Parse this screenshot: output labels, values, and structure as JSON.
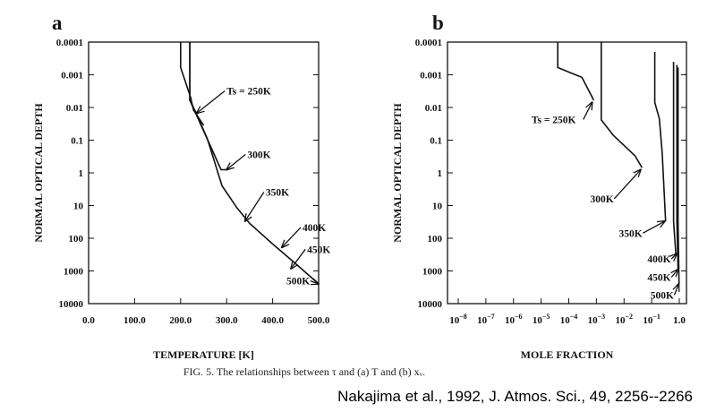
{
  "caption": "FIG. 5. The relationships between τ and (a) T and (b) xᵥ.",
  "citation": "Nakajima et al., 1992, J. Atmos. Sci., 49, 2256--2266",
  "chart_data": [
    {
      "panel": "a",
      "type": "line",
      "xlabel": "TEMPERATURE [K]",
      "ylabel": "NORMAL OPTICAL DEPTH",
      "xlim": [
        0,
        500
      ],
      "ylim": [
        0.0001,
        10000
      ],
      "yscale": "log",
      "yreversed": true,
      "xticks": [
        "0.0",
        "100.0",
        "200.0",
        "300.0",
        "400.0",
        "500.0"
      ],
      "yticks": [
        "0.0001",
        "0.001",
        "0.01",
        "0.1",
        "1",
        "10",
        "100",
        "1000",
        "10000"
      ],
      "series": [
        {
          "name": "Ts = 250K",
          "points": [
            [
              200,
              0.0001
            ],
            [
              200,
              0.0006
            ],
            [
              222,
              0.005
            ],
            [
              228,
              0.012
            ],
            [
              250,
              0.035
            ]
          ]
        },
        {
          "name": "300K",
          "points": [
            [
              220,
              0.0001
            ],
            [
              220,
              0.006
            ],
            [
              288,
              0.8
            ],
            [
              300,
              0.8
            ]
          ]
        },
        {
          "name": "350K",
          "points": [
            [
              220,
              0.0001
            ],
            [
              220,
              0.006
            ],
            [
              232,
              0.013
            ],
            [
              258,
              0.09
            ],
            [
              290,
              2.5
            ],
            [
              323,
              12
            ],
            [
              350,
              35
            ]
          ]
        },
        {
          "name": "400K",
          "points": [
            [
              350,
              35
            ],
            [
              400,
              150
            ]
          ]
        },
        {
          "name": "450K",
          "points": [
            [
              400,
              150
            ],
            [
              450,
              600
            ]
          ]
        },
        {
          "name": "500K",
          "points": [
            [
              450,
              600
            ],
            [
              500,
              2500
            ]
          ]
        }
      ],
      "annotations": [
        {
          "text": "Ts = 250K",
          "x": 300,
          "y": 0.004,
          "ax": 235,
          "ay": 0.015
        },
        {
          "text": "300K",
          "x": 345,
          "y": 0.35,
          "ax": 300,
          "ay": 0.8
        },
        {
          "text": "350K",
          "x": 385,
          "y": 5,
          "ax": 340,
          "ay": 30
        },
        {
          "text": "400K",
          "x": 465,
          "y": 60,
          "ax": 420,
          "ay": 190
        },
        {
          "text": "450K",
          "x": 475,
          "y": 280,
          "ax": 440,
          "ay": 850
        },
        {
          "text": "500K",
          "x": 430,
          "y": 2600,
          "ax": 500,
          "ay": 2500
        }
      ]
    },
    {
      "panel": "b",
      "type": "line",
      "xlabel": "MOLE FRACTION",
      "ylabel": "NORMAL OPTICAL DEPTH",
      "xscale": "log",
      "xlim": [
        1e-08,
        1.0
      ],
      "ylim": [
        0.0001,
        10000
      ],
      "yscale": "log",
      "yreversed": true,
      "xticks": [
        "10^-8",
        "10^-7",
        "10^-6",
        "10^-5",
        "10^-4",
        "10^-3",
        "10^-2",
        "10^-1",
        "1.0"
      ],
      "yticks": [
        "0.0001",
        "0.001",
        "0.01",
        "0.1",
        "1",
        "10",
        "100",
        "1000",
        "10000"
      ],
      "series": [
        {
          "name": "Ts = 250K",
          "points": [
            [
              4e-05,
              0.0001
            ],
            [
              4e-05,
              0.0006
            ],
            [
              0.0003,
              0.0012
            ],
            [
              0.0008,
              0.006
            ]
          ]
        },
        {
          "name": "300K",
          "points": [
            [
              0.0015,
              0.0001
            ],
            [
              0.0015,
              0.024
            ],
            [
              0.004,
              0.07
            ],
            [
              0.025,
              0.3
            ],
            [
              0.045,
              0.7
            ]
          ]
        },
        {
          "name": "350K",
          "points": [
            [
              0.13,
              0.0002
            ],
            [
              0.13,
              0.007
            ],
            [
              0.19,
              0.022
            ],
            [
              0.24,
              0.25
            ],
            [
              0.32,
              30
            ]
          ]
        },
        {
          "name": "400K",
          "points": [
            [
              0.62,
              0.0004
            ],
            [
              0.62,
              30
            ],
            [
              0.75,
              300
            ]
          ]
        },
        {
          "name": "450K",
          "points": [
            [
              0.82,
              0.0005
            ],
            [
              0.82,
              30
            ],
            [
              0.9,
              900
            ]
          ]
        },
        {
          "name": "500K",
          "points": [
            [
              0.9,
              0.0006
            ],
            [
              0.9,
              30
            ],
            [
              0.98,
              2500
            ]
          ]
        }
      ],
      "annotations": [
        {
          "text": "Ts = 250K",
          "x": 4.5e-06,
          "y": 0.03,
          "ax": 0.0007,
          "ay": 0.007
        },
        {
          "text": "300K",
          "x": 0.0006,
          "y": 8,
          "ax": 0.04,
          "ay": 0.8
        },
        {
          "text": "350K",
          "x": 0.0065,
          "y": 90,
          "ax": 0.3,
          "ay": 30
        },
        {
          "text": "400K",
          "x": 0.07,
          "y": 550,
          "ax": 0.8,
          "ay": 300
        },
        {
          "text": "450K",
          "x": 0.07,
          "y": 2000,
          "ax": 0.9,
          "ay": 900
        },
        {
          "text": "500K",
          "x": 0.09,
          "y": 7000,
          "ax": 0.95,
          "ay": 2500
        }
      ]
    }
  ]
}
